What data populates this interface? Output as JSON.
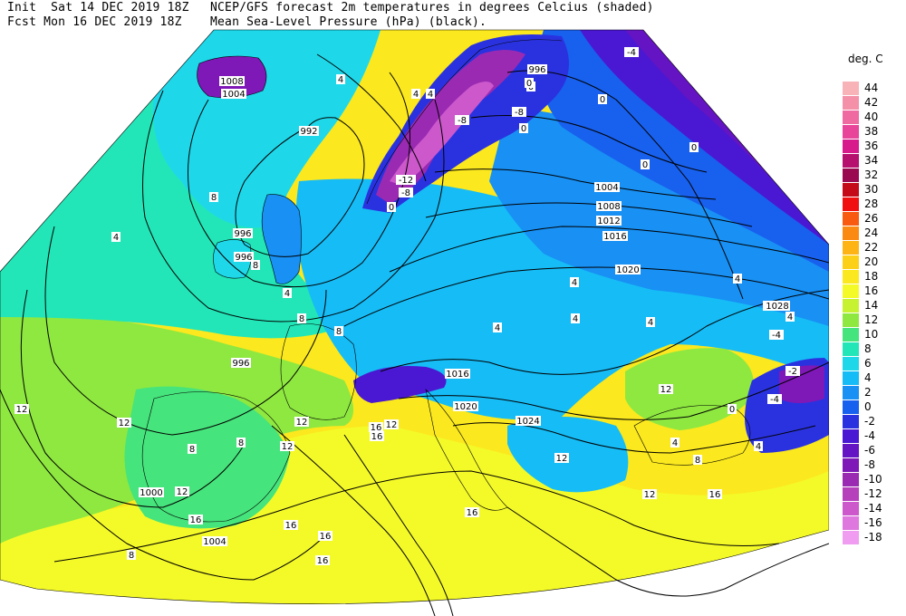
{
  "header": {
    "init_line": "Init  Sat 14 DEC 2019 18Z",
    "fcst_line": "Fcst Mon 16 DEC 2019 18Z",
    "title_line1": "NCEP/GFS forecast 2m temperatures in degrees Celcius (shaded)",
    "title_line2": "Mean Sea-Level Pressure (hPa) (black)."
  },
  "legend": {
    "unit": "deg. C",
    "levels": [
      {
        "label": "44",
        "color": "#f7b3b8"
      },
      {
        "label": "42",
        "color": "#f490a8"
      },
      {
        "label": "40",
        "color": "#ee6aa0"
      },
      {
        "label": "38",
        "color": "#e8449a"
      },
      {
        "label": "36",
        "color": "#d81b8c"
      },
      {
        "label": "34",
        "color": "#b5106e"
      },
      {
        "label": "32",
        "color": "#9a0a50"
      },
      {
        "label": "30",
        "color": "#c40a18"
      },
      {
        "label": "28",
        "color": "#f01010"
      },
      {
        "label": "26",
        "color": "#f85a10"
      },
      {
        "label": "24",
        "color": "#fb8a12"
      },
      {
        "label": "22",
        "color": "#fdb414"
      },
      {
        "label": "20",
        "color": "#fdd018"
      },
      {
        "label": "18",
        "color": "#fbe81e"
      },
      {
        "label": "16",
        "color": "#f4fa28"
      },
      {
        "label": "14",
        "color": "#c6f232"
      },
      {
        "label": "12",
        "color": "#8ee840"
      },
      {
        "label": "10",
        "color": "#46e47c"
      },
      {
        "label": "8",
        "color": "#22e6b8"
      },
      {
        "label": "6",
        "color": "#1ed8ea"
      },
      {
        "label": "4",
        "color": "#16bcf6"
      },
      {
        "label": "2",
        "color": "#1890f4"
      },
      {
        "label": "0",
        "color": "#1860ee"
      },
      {
        "label": "-2",
        "color": "#2a32e0"
      },
      {
        "label": "-4",
        "color": "#4a18d2"
      },
      {
        "label": "-6",
        "color": "#6414c2"
      },
      {
        "label": "-8",
        "color": "#7e18b6"
      },
      {
        "label": "-10",
        "color": "#9a2ab2"
      },
      {
        "label": "-12",
        "color": "#b640bc"
      },
      {
        "label": "-14",
        "color": "#cc58cc"
      },
      {
        "label": "-16",
        "color": "#de78de"
      },
      {
        "label": "-18",
        "color": "#f09cf0"
      }
    ]
  },
  "isobar_labels": [
    "1008",
    "1004",
    "992",
    "996",
    "996",
    "996",
    "1004",
    "1008",
    "1012",
    "1016",
    "1020",
    "1028",
    "1028",
    "1016",
    "1020",
    "1024",
    "996",
    "1000",
    "1004"
  ],
  "temp_labels": [
    "4",
    "4",
    "4",
    "0",
    "-8",
    "-8",
    "0",
    "-4",
    "0",
    "0",
    "-12",
    "-8",
    "0",
    "8",
    "4",
    "8",
    "4",
    "8",
    "8",
    "12",
    "12",
    "8",
    "8",
    "12",
    "12",
    "12",
    "16",
    "16",
    "16",
    "12",
    "8",
    "4",
    "4",
    "4",
    "0",
    "0",
    "4",
    "4",
    "4",
    "8",
    "12",
    "-4",
    "-4",
    "0",
    "4",
    "4",
    "-2",
    "16",
    "16",
    "12",
    "12",
    "16",
    "16",
    "16"
  ]
}
